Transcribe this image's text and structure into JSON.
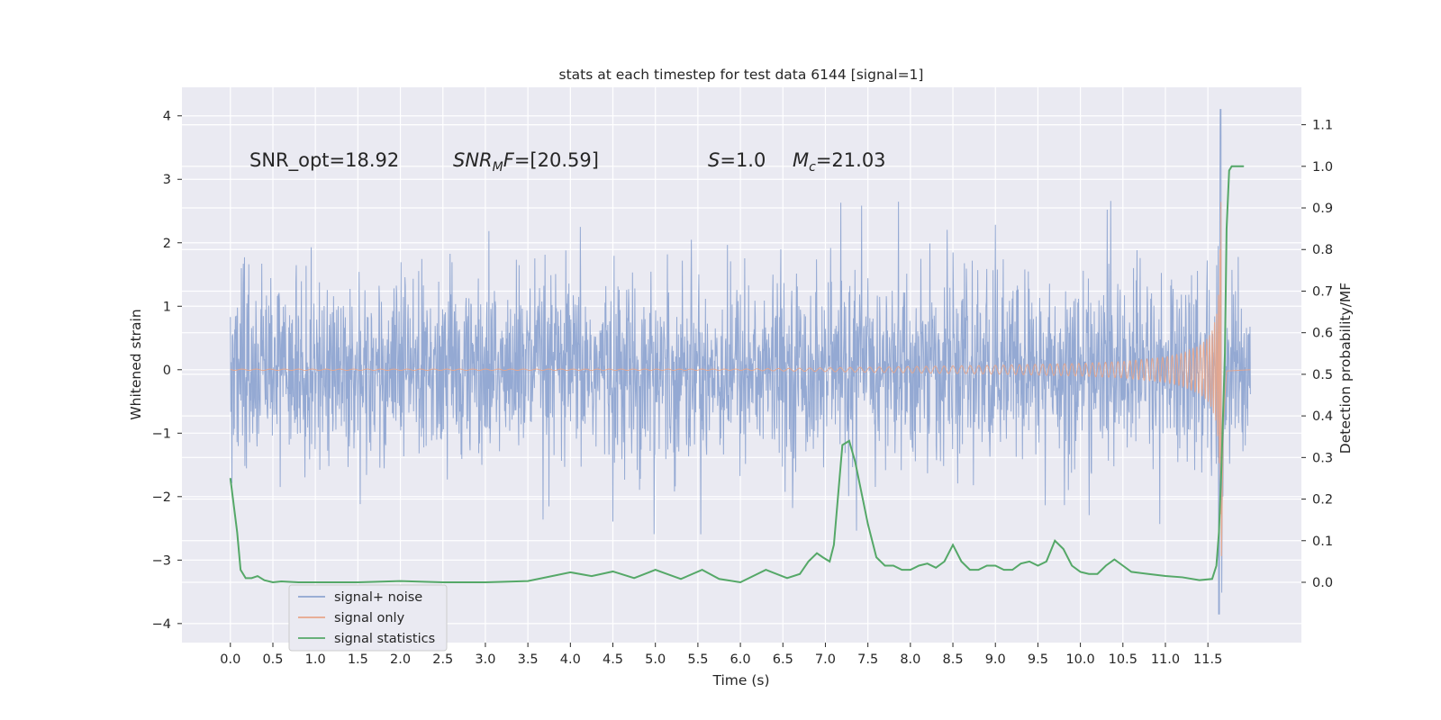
{
  "chart_data": {
    "type": "line",
    "title": "stats at each timestep for test data 6144 [signal=1]",
    "xlabel": "Time (s)",
    "ylabel": "Whitened strain",
    "y2label": "Detection probability/MF",
    "xlim": [
      -0.57,
      12.6
    ],
    "ylim": [
      -4.3,
      4.45
    ],
    "y2lim": [
      -0.145,
      1.19
    ],
    "xticks": [
      "0.0",
      "0.5",
      "1.0",
      "1.5",
      "2.0",
      "2.5",
      "3.0",
      "3.5",
      "4.0",
      "4.5",
      "5.0",
      "5.5",
      "6.0",
      "6.5",
      "7.0",
      "7.5",
      "8.0",
      "8.5",
      "9.0",
      "9.5",
      "10.0",
      "10.5",
      "11.0",
      "11.5"
    ],
    "yticks": [
      "4",
      "3",
      "2",
      "1",
      "0",
      "−1",
      "−2",
      "−3",
      "−4"
    ],
    "y2ticks": [
      "1.1",
      "1.0",
      "0.9",
      "0.8",
      "0.7",
      "0.6",
      "0.5",
      "0.4",
      "0.3",
      "0.2",
      "0.1",
      "0.0"
    ],
    "grid": true,
    "legend_position": "lower-left",
    "annotations": [
      {
        "prefix": "SNR_opt=18.92",
        "sub": "",
        "suffix": "",
        "italic": false
      },
      {
        "prefix": "SNR",
        "sub": "M",
        "suffix": "F=[20.59]",
        "italic": true
      },
      {
        "prefix": "S",
        "sub": "",
        "suffix": "=1.0",
        "italic": true
      },
      {
        "prefix": "M",
        "sub": "c",
        "suffix": "=21.03",
        "italic": true
      }
    ],
    "series": [
      {
        "name": "signal+ noise",
        "color": "#8fa5d1",
        "axis": "left",
        "description": "dense noise band, core amplitude about ±1.3 with spikes to about ±2.5, extremes 4.1 at t=11.65 and −3.85 at t=11.63",
        "x_range": [
          0.0,
          12.0
        ]
      },
      {
        "name": "signal only",
        "color": "#e8a58a",
        "axis": "left",
        "description": "chirp growing from 0 to peak near 3.2 at t≈11.66",
        "envelope_x": [
          0.0,
          6.0,
          7.0,
          8.0,
          9.0,
          10.0,
          10.5,
          11.0,
          11.2,
          11.4,
          11.5,
          11.55,
          11.6,
          11.63,
          11.66,
          11.68,
          11.72,
          12.0
        ],
        "envelope_y": [
          0.01,
          0.01,
          0.03,
          0.05,
          0.07,
          0.1,
          0.13,
          0.2,
          0.26,
          0.38,
          0.5,
          0.62,
          0.85,
          1.3,
          3.0,
          0.9,
          0.02,
          0.0
        ]
      },
      {
        "name": "signal statistics",
        "color": "#55a868",
        "axis": "right",
        "x": [
          0.0,
          0.08,
          0.12,
          0.18,
          0.25,
          0.32,
          0.4,
          0.5,
          0.6,
          0.8,
          1.0,
          1.5,
          2.0,
          2.5,
          3.0,
          3.5,
          4.0,
          4.25,
          4.5,
          4.75,
          5.0,
          5.3,
          5.55,
          5.75,
          6.0,
          6.3,
          6.55,
          6.7,
          6.8,
          6.9,
          6.97,
          7.05,
          7.1,
          7.2,
          7.28,
          7.35,
          7.5,
          7.6,
          7.7,
          7.8,
          7.9,
          8.0,
          8.1,
          8.2,
          8.3,
          8.4,
          8.5,
          8.6,
          8.7,
          8.8,
          8.9,
          9.0,
          9.1,
          9.2,
          9.3,
          9.4,
          9.5,
          9.6,
          9.7,
          9.8,
          9.9,
          10.0,
          10.1,
          10.2,
          10.3,
          10.4,
          10.5,
          10.6,
          10.8,
          11.0,
          11.2,
          11.4,
          11.55,
          11.6,
          11.63,
          11.66,
          11.7,
          11.72,
          11.75,
          11.78,
          11.82,
          11.86,
          11.92
        ],
        "y": [
          0.25,
          0.12,
          0.03,
          0.01,
          0.01,
          0.015,
          0.005,
          0.0,
          0.002,
          0.0,
          0.0,
          0.0,
          0.003,
          0.0,
          0.0,
          0.003,
          0.024,
          0.015,
          0.026,
          0.01,
          0.03,
          0.008,
          0.03,
          0.008,
          0.0,
          0.03,
          0.01,
          0.02,
          0.05,
          0.07,
          0.06,
          0.05,
          0.09,
          0.33,
          0.34,
          0.29,
          0.14,
          0.06,
          0.04,
          0.04,
          0.03,
          0.03,
          0.04,
          0.045,
          0.035,
          0.05,
          0.09,
          0.05,
          0.03,
          0.03,
          0.04,
          0.04,
          0.03,
          0.03,
          0.045,
          0.05,
          0.04,
          0.05,
          0.1,
          0.08,
          0.04,
          0.025,
          0.02,
          0.02,
          0.04,
          0.055,
          0.04,
          0.025,
          0.02,
          0.015,
          0.012,
          0.005,
          0.008,
          0.04,
          0.12,
          0.28,
          0.55,
          0.85,
          0.99,
          1.0,
          1.0,
          1.0,
          1.0
        ]
      }
    ]
  }
}
